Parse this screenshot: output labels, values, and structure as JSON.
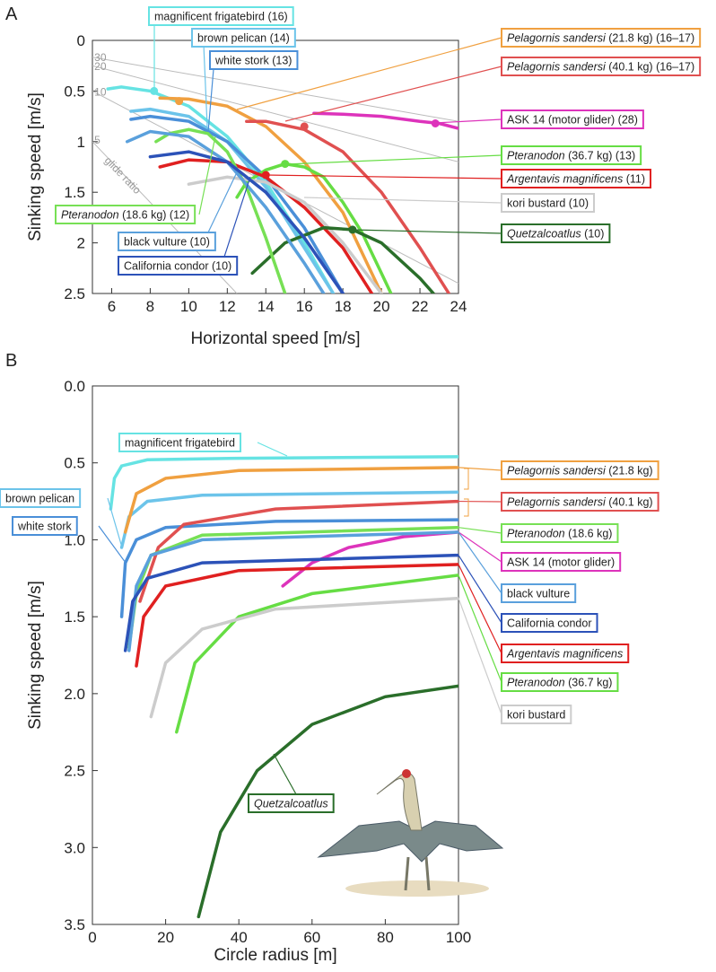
{
  "chart_data": [
    {
      "type": "line",
      "panel": "A",
      "xlabel": "Horizontal speed [m/s]",
      "ylabel": "Sinking speed [m/s]",
      "xlim": [
        5,
        24
      ],
      "ylim": [
        0,
        2.5
      ],
      "y_inverted": true,
      "xticks": [
        6,
        8,
        10,
        12,
        14,
        16,
        18,
        20,
        22,
        24
      ],
      "yticks": [
        0,
        0.5,
        1,
        1.5,
        2,
        2.5
      ],
      "glide_lines": {
        "ratios": [
          30,
          20,
          10,
          5
        ],
        "label": "glide ratio"
      },
      "series": [
        {
          "name": "magnificent frigatebird (16)",
          "color": "#66e3e3",
          "x": [
            5.8,
            6.5,
            8,
            10,
            12,
            14,
            16,
            17.5
          ],
          "y": [
            0.48,
            0.46,
            0.5,
            0.65,
            0.95,
            1.4,
            2.0,
            2.5
          ],
          "dot": [
            8.2,
            0.5
          ]
        },
        {
          "name": "brown pelican (14)",
          "color": "#6cc4ea",
          "x": [
            7,
            8,
            10,
            12,
            14,
            16,
            17.5
          ],
          "y": [
            0.7,
            0.68,
            0.75,
            1.0,
            1.45,
            2.05,
            2.5
          ]
        },
        {
          "name": "white stork (13)",
          "color": "#4a8fd8",
          "x": [
            7,
            8,
            10,
            12,
            14,
            16,
            18
          ],
          "y": [
            0.78,
            0.75,
            0.8,
            1.0,
            1.35,
            1.85,
            2.5
          ]
        },
        {
          "name": {
            "italic": "Pelagornis sandersi",
            "plain": " (21.8 kg) (16–17)"
          },
          "color": "#f0a040",
          "x": [
            8.5,
            10,
            12,
            14,
            16,
            18,
            20
          ],
          "y": [
            0.57,
            0.58,
            0.65,
            0.85,
            1.2,
            1.7,
            2.5
          ],
          "dot": [
            9.5,
            0.6
          ]
        },
        {
          "name": {
            "italic": "Pelagornis sandersi",
            "plain": " (40.1 kg) (16–17)"
          },
          "color": "#e05050",
          "x": [
            13,
            14,
            16,
            18,
            20,
            22,
            23.5
          ],
          "y": [
            0.8,
            0.8,
            0.88,
            1.1,
            1.5,
            2.05,
            2.5
          ],
          "dot": [
            16,
            0.85
          ]
        },
        {
          "name": "ASK 14 (motor glider) (28)",
          "color": "#dd33bb",
          "x": [
            16.5,
            18,
            20,
            22,
            23,
            24
          ],
          "y": [
            0.72,
            0.73,
            0.75,
            0.8,
            0.82,
            0.87
          ],
          "dot": [
            22.8,
            0.82
          ]
        },
        {
          "name": {
            "italic": "Pteranodon",
            "plain": " (36.7 kg) (13)"
          },
          "color": "#66dd44",
          "x": [
            12.5,
            13,
            14,
            15,
            16,
            17,
            18,
            19,
            20,
            20.5
          ],
          "y": [
            1.55,
            1.4,
            1.28,
            1.22,
            1.25,
            1.35,
            1.6,
            1.9,
            2.3,
            2.5
          ],
          "dot": [
            15,
            1.22
          ]
        },
        {
          "name": {
            "italic": "Argentavis magnificens",
            "plain": " (11)"
          },
          "color": "#e02020",
          "x": [
            8.5,
            10,
            12,
            14,
            16,
            18,
            19.5
          ],
          "y": [
            1.25,
            1.18,
            1.2,
            1.35,
            1.65,
            2.05,
            2.5
          ],
          "dot": [
            14,
            1.33
          ]
        },
        {
          "name": "kori bustard (10)",
          "color": "#cccccc",
          "x": [
            10,
            12,
            14,
            16,
            18,
            20
          ],
          "y": [
            1.42,
            1.35,
            1.4,
            1.6,
            2.0,
            2.5
          ]
        },
        {
          "name": {
            "italic": "Quetzalcoatlus",
            "plain": " (10)"
          },
          "color": "#2a6e2a",
          "x": [
            13.3,
            15,
            17,
            18.5,
            20,
            22,
            22.7
          ],
          "y": [
            2.3,
            2.0,
            1.85,
            1.87,
            2.0,
            2.35,
            2.5
          ],
          "dot": [
            18.5,
            1.87
          ]
        },
        {
          "name": {
            "italic": "Pteranodon",
            "plain": " (18.6 kg) (12)"
          },
          "color": "#77e055",
          "x": [
            8.3,
            9,
            10,
            11,
            12,
            13,
            14,
            15
          ],
          "y": [
            1.0,
            0.92,
            0.88,
            0.92,
            1.1,
            1.45,
            1.95,
            2.5
          ]
        },
        {
          "name": "black vulture (10)",
          "color": "#5aa0dc",
          "x": [
            6.8,
            8,
            10,
            12,
            14,
            16,
            17
          ],
          "y": [
            1.0,
            0.9,
            0.95,
            1.2,
            1.65,
            2.2,
            2.5
          ]
        },
        {
          "name": "California condor (10)",
          "color": "#2c52b8",
          "x": [
            8,
            10,
            12,
            14,
            16,
            18
          ],
          "y": [
            1.15,
            1.1,
            1.2,
            1.5,
            1.95,
            2.5
          ]
        }
      ]
    },
    {
      "type": "line",
      "panel": "B",
      "xlabel": "Circle radius [m]",
      "ylabel": "Sinking speed [m/s]",
      "xlim": [
        0,
        100
      ],
      "ylim": [
        0,
        3.5
      ],
      "y_inverted": true,
      "xticks": [
        0,
        20,
        40,
        60,
        80,
        100
      ],
      "yticks": [
        {
          "value": 0,
          "label": "0.0"
        },
        0.5,
        {
          "value": 1,
          "label": "1.0"
        },
        1.5,
        {
          "value": 2,
          "label": "2.0"
        },
        2.5,
        {
          "value": 3,
          "label": "3.0"
        },
        3.5
      ],
      "series": [
        {
          "name": "magnificent frigatebird",
          "color": "#66e3e3",
          "x": [
            5,
            6,
            8,
            15,
            40,
            100
          ],
          "y": [
            0.8,
            0.6,
            0.52,
            0.48,
            0.47,
            0.46
          ]
        },
        {
          "name": "brown pelican",
          "color": "#6cc4ea",
          "x": [
            8,
            10,
            15,
            30,
            100
          ],
          "y": [
            1.05,
            0.85,
            0.75,
            0.71,
            0.69
          ]
        },
        {
          "name": "white stork",
          "color": "#4a8fd8",
          "x": [
            8,
            9,
            12,
            20,
            50,
            100
          ],
          "y": [
            1.5,
            1.15,
            1.0,
            0.92,
            0.88,
            0.87
          ]
        },
        {
          "name": {
            "italic": "Pelagornis sandersi",
            "plain": " (21.8 kg)"
          },
          "color": "#f0a040",
          "x": [
            9,
            12,
            20,
            40,
            100
          ],
          "y": [
            0.95,
            0.7,
            0.6,
            0.55,
            0.53
          ]
        },
        {
          "name": {
            "italic": "Pelagornis sandersi",
            "plain": " (40.1 kg)"
          },
          "color": "#e05050",
          "x": [
            13,
            18,
            25,
            50,
            100
          ],
          "y": [
            1.4,
            1.05,
            0.9,
            0.8,
            0.75
          ]
        },
        {
          "name": {
            "italic": "Pteranodon",
            "plain": " (18.6 kg)"
          },
          "color": "#77e055",
          "x": [
            10,
            12,
            16,
            30,
            100
          ],
          "y": [
            1.7,
            1.35,
            1.1,
            0.97,
            0.92
          ]
        },
        {
          "name": "ASK 14 (motor glider)",
          "color": "#dd33bb",
          "x": [
            52,
            60,
            70,
            85,
            100
          ],
          "y": [
            1.3,
            1.15,
            1.05,
            0.98,
            0.95
          ]
        },
        {
          "name": "black vulture",
          "color": "#5aa0dc",
          "x": [
            10,
            12,
            16,
            30,
            100
          ],
          "y": [
            1.72,
            1.3,
            1.1,
            1.0,
            0.95
          ]
        },
        {
          "name": "California condor",
          "color": "#2c52b8",
          "x": [
            9,
            11,
            15,
            30,
            100
          ],
          "y": [
            1.72,
            1.4,
            1.25,
            1.15,
            1.1
          ]
        },
        {
          "name": {
            "italic": "Argentavis magnificens",
            "plain": ""
          },
          "color": "#e02020",
          "x": [
            12,
            14,
            20,
            40,
            100
          ],
          "y": [
            1.82,
            1.5,
            1.3,
            1.2,
            1.16
          ]
        },
        {
          "name": {
            "italic": "Pteranodon",
            "plain": " (36.7 kg)"
          },
          "color": "#66dd44",
          "x": [
            23,
            28,
            40,
            60,
            100
          ],
          "y": [
            2.25,
            1.8,
            1.5,
            1.35,
            1.23
          ]
        },
        {
          "name": "kori bustard",
          "color": "#cccccc",
          "x": [
            16,
            20,
            30,
            50,
            100
          ],
          "y": [
            2.15,
            1.8,
            1.58,
            1.45,
            1.38
          ]
        },
        {
          "name": {
            "italic": "Quetzalcoatlus",
            "plain": ""
          },
          "color": "#2a6e2a",
          "x": [
            29,
            35,
            45,
            60,
            80,
            100
          ],
          "y": [
            3.45,
            2.9,
            2.5,
            2.2,
            2.02,
            1.95
          ]
        }
      ]
    }
  ]
}
